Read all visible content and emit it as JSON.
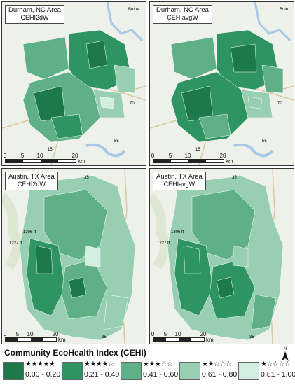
{
  "panels": [
    {
      "id": "durham-2dw",
      "title": "Durham, NC Area",
      "subtitle": "CEHI2dW",
      "scale": {
        "ticks": [
          "0",
          "5",
          "10",
          "20"
        ],
        "unit": "km"
      },
      "road_labels": [
        "70",
        "55",
        "15",
        "Butne"
      ]
    },
    {
      "id": "durham-avg",
      "title": "Durham, NC Area",
      "subtitle": "CEHIavgW",
      "scale": {
        "ticks": [
          "0",
          "5",
          "10",
          "20"
        ],
        "unit": "km"
      },
      "road_labels": [
        "70",
        "55",
        "15",
        "Butn"
      ]
    },
    {
      "id": "austin-2dw",
      "title": "Austin, TX Area",
      "subtitle": "CEHI2dW",
      "scale": {
        "ticks": [
          "0",
          "5",
          "10",
          "20"
        ],
        "unit": "km"
      },
      "road_labels": [
        "1306 ft",
        "1227 ft",
        "35",
        "35"
      ]
    },
    {
      "id": "austin-avg",
      "title": "Austin, TX Area",
      "subtitle": "CEHIavgW",
      "scale": {
        "ticks": [
          "0",
          "5",
          "10",
          "20"
        ],
        "unit": "km"
      },
      "road_labels": [
        "1306 ft",
        "1227 ft",
        "35",
        "35"
      ]
    }
  ],
  "legend": {
    "title": "Community EcoHealth Index (CEHI)",
    "classes": [
      {
        "stars": "★★★★★",
        "range": "0.00 - 0.20",
        "color": "#1c7a4a"
      },
      {
        "stars": "★★★★☆",
        "range": "0.21 - 0.40",
        "color": "#2e9461"
      },
      {
        "stars": "★★★☆☆",
        "range": "0.41 - 0.60",
        "color": "#5fb087"
      },
      {
        "stars": "★★☆☆☆",
        "range": "0.61 - 0.80",
        "color": "#98cfb2"
      },
      {
        "stars": "★☆☆☆☆",
        "range": "0.81 - 1.00",
        "color": "#d2eee0"
      }
    ]
  },
  "north_arrow_label": "N"
}
